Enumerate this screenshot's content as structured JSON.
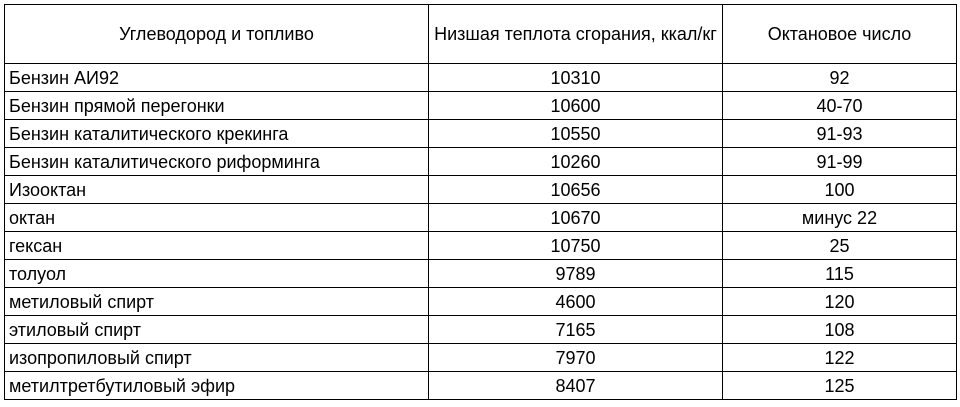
{
  "table": {
    "headers": [
      "Углеводород и топливо",
      "Низшая теплота сгорания, ккал/кг",
      "Октановое число"
    ],
    "rows": [
      [
        "Бензин АИ92",
        "10310",
        "92"
      ],
      [
        "Бензин прямой перегонки",
        "10600",
        "40-70"
      ],
      [
        "Бензин каталитического крекинга",
        "10550",
        "91-93"
      ],
      [
        "Бензин каталитического риформинга",
        "10260",
        "91-99"
      ],
      [
        "Изооктан",
        "10656",
        "100"
      ],
      [
        "октан",
        "10670",
        "минус 22"
      ],
      [
        "гексан",
        "10750",
        "25"
      ],
      [
        "толуол",
        "9789",
        "115"
      ],
      [
        "метиловый спирт",
        "4600",
        "120"
      ],
      [
        "этиловый спирт",
        "7165",
        "108"
      ],
      [
        "изопропиловый спирт",
        "7970",
        "122"
      ],
      [
        "метилтретбутиловый эфир",
        "8407",
        "125"
      ]
    ]
  }
}
